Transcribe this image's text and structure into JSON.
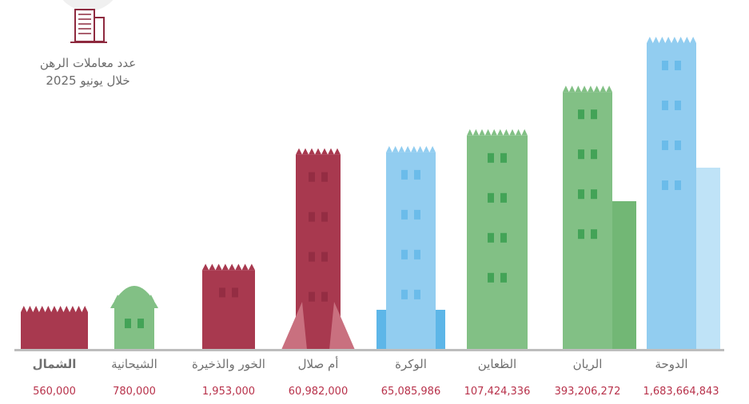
{
  "header": {
    "title_line1": "عدد معاملات الرهن",
    "title_line2": "خلال يونيو 2025",
    "icon": "building-icon"
  },
  "colors": {
    "maroon": "#a8394f",
    "maroon_dark": "#8e2a3f",
    "green": "#82c085",
    "green_dark": "#2e9a48",
    "blue": "#92cdf0",
    "blue_light": "#bfe3f7",
    "baseline": "#bdbdbd",
    "value_text": "#b8324b",
    "label_text": "#6f6f6f"
  },
  "chart_data": {
    "type": "bar",
    "title": "عدد معاملات الرهن خلال يونيو 2025",
    "categories": [
      "الدوحة",
      "الريان",
      "الظعاين",
      "الوكرة",
      "أم صلال",
      "الخور والذخيرة",
      "الشيحانية",
      "الشمال"
    ],
    "values": [
      1683664843,
      393206272,
      107424336,
      65085986,
      60982000,
      1953000,
      780000,
      560000
    ],
    "value_labels": [
      "1,683,664,843",
      "393,206,272",
      "107,424,336",
      "65,085,986",
      "60,982,000",
      "1,953,000",
      "780,000",
      "560,000"
    ],
    "bar_colors": [
      "blue",
      "green",
      "green",
      "blue",
      "maroon",
      "maroon",
      "green",
      "maroon"
    ],
    "highlighted_category": "الشمال"
  }
}
